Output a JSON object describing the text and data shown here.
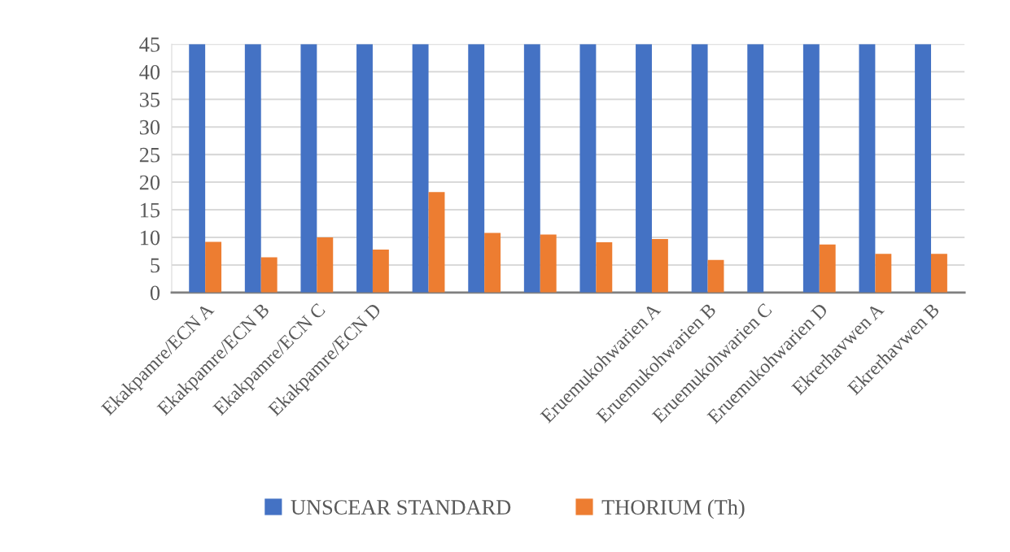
{
  "chart_data": {
    "type": "bar",
    "categories": [
      "Ekakpamre/ECN A",
      "Ekakpamre/ECN B",
      "Ekakpamre/ECN C",
      "Ekakpamre/ECN D",
      null,
      null,
      null,
      null,
      "Eruemukohwarien A",
      "Eruemukohwarien B",
      "Eruemukohwarien C",
      "Eruemukohwarien D",
      "Ekrerhavwen A",
      "Ekrerhavwen B"
    ],
    "series": [
      {
        "name": "UNSCEAR STANDARD",
        "color": "#4472c4",
        "values": [
          45,
          45,
          45,
          45,
          45,
          45,
          45,
          45,
          45,
          45,
          45,
          45,
          45,
          45
        ]
      },
      {
        "name": "THORIUM (Th)",
        "color": "#ed7d31",
        "values": [
          9.2,
          6.4,
          10.0,
          7.8,
          18.2,
          10.8,
          10.5,
          9.1,
          9.7,
          5.9,
          0,
          8.7,
          7.0,
          7.0
        ]
      }
    ],
    "ylim": [
      0,
      45
    ],
    "yticks": [
      0,
      5,
      10,
      15,
      20,
      25,
      30,
      35,
      40,
      45
    ],
    "grid": "y",
    "legend": "bottom"
  }
}
